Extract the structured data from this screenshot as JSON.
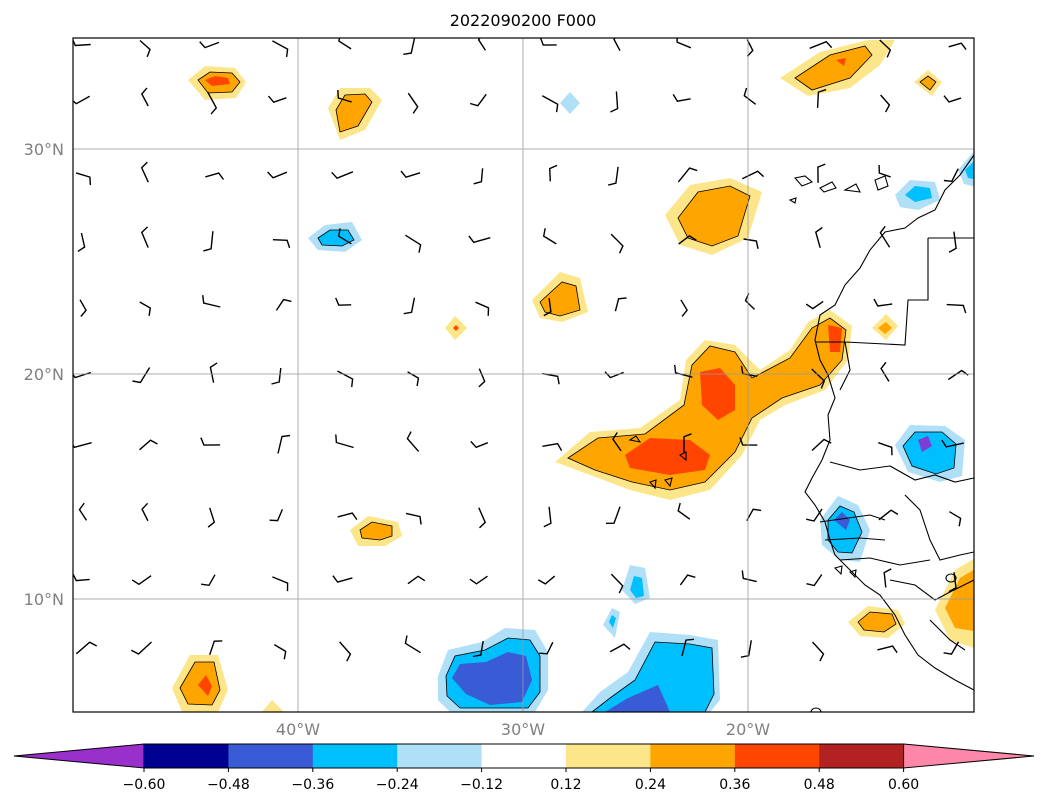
{
  "title": "2022090200 F000",
  "map": {
    "extent": {
      "lon_min": -50,
      "lon_max": -10,
      "lat_min": 5,
      "lat_max": 35
    },
    "lat_gridlines": [
      10,
      20,
      30
    ],
    "lon_gridlines": [
      -40,
      -30,
      -20
    ],
    "lat_labels": [
      "10°N",
      "20°N",
      "30°N"
    ],
    "lon_labels": [
      "40°W",
      "30°W",
      "20°W"
    ]
  },
  "colorbar": {
    "ticks": [
      "−0.60",
      "−0.48",
      "−0.36",
      "−0.24",
      "−0.12",
      "0.12",
      "0.24",
      "0.36",
      "0.48",
      "0.60"
    ],
    "levels": [
      -0.6,
      -0.48,
      -0.36,
      -0.24,
      -0.12,
      0.12,
      0.24,
      0.36,
      0.48,
      0.6
    ],
    "under_color": "#9a30cc",
    "over_color": "#ff88aa",
    "bin_colors": [
      "#000090",
      "#3a5bd6",
      "#00bfff",
      "#b0e0f8",
      "#ffffff",
      "#fde68a",
      "#ffa500",
      "#ff4500",
      "#b22222"
    ]
  },
  "colors": {
    "yellow": "#fde68a",
    "orange": "#ffa500",
    "red": "#ff4500",
    "lightblue": "#b0e0f8",
    "blue": "#00bfff",
    "darkblue": "#3a5bd6",
    "purple": "#7b3fd6"
  }
}
